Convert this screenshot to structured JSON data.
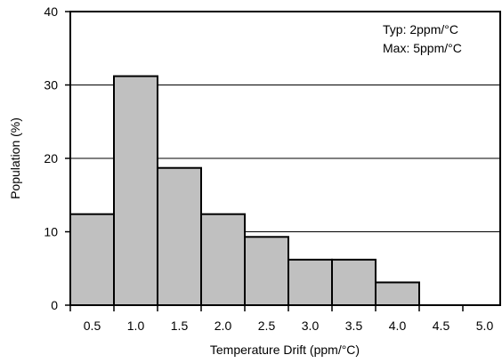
{
  "chart_data": {
    "type": "bar",
    "categories": [
      "0.5",
      "1.0",
      "1.5",
      "2.0",
      "2.5",
      "3.0",
      "3.5",
      "4.0",
      "4.5",
      "5.0"
    ],
    "values": [
      12.4,
      31.2,
      18.7,
      12.4,
      9.3,
      6.2,
      6.2,
      3.1,
      0,
      0
    ],
    "xlabel": "Temperature Drift (ppm/°C)",
    "ylabel": "Population (%)",
    "ylim": [
      0,
      40
    ],
    "yticks": [
      "0",
      "10",
      "20",
      "30",
      "40"
    ],
    "annotations": [
      "Typ: 2ppm/°C",
      "Max: 5ppm/°C"
    ],
    "grid": "horizontal",
    "bar_color": "#c0c0c0",
    "edge_color": "#000000"
  }
}
